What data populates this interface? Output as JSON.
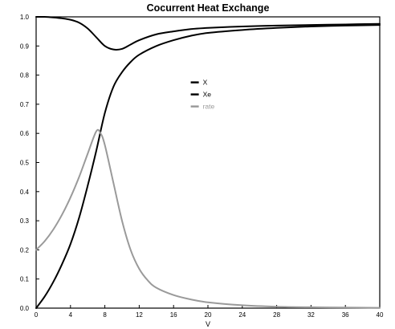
{
  "chart_data": {
    "type": "line",
    "title": "Cocurrent Heat Exchange",
    "xlabel": "V",
    "ylabel": "",
    "xlim": [
      0,
      40
    ],
    "ylim": [
      0,
      1.0
    ],
    "xticks": [
      0,
      4,
      8,
      12,
      16,
      20,
      24,
      28,
      32,
      36,
      40
    ],
    "yticks": [
      0.0,
      0.1,
      0.2,
      0.3,
      0.4,
      0.5,
      0.6,
      0.7,
      0.8,
      0.9,
      1.0
    ],
    "xtick_labels": [
      "0",
      "4",
      "8",
      "12",
      "16",
      "20",
      "24",
      "28",
      "32",
      "36",
      "40"
    ],
    "ytick_labels": [
      "0.0",
      "0.1",
      "0.2",
      "0.3",
      "0.4",
      "0.5",
      "0.6",
      "0.7",
      "0.8",
      "0.9",
      "1.0"
    ],
    "grid": false,
    "legend_position": "center",
    "series": [
      {
        "name": "X",
        "color": "#000000",
        "x": [
          0,
          1,
          2,
          3,
          4,
          5,
          6,
          7,
          8,
          9,
          10,
          11,
          12,
          14,
          16,
          18,
          20,
          24,
          28,
          32,
          36,
          40
        ],
        "values": [
          0.0,
          0.04,
          0.09,
          0.15,
          0.22,
          0.31,
          0.42,
          0.54,
          0.67,
          0.76,
          0.81,
          0.845,
          0.87,
          0.9,
          0.92,
          0.935,
          0.945,
          0.955,
          0.962,
          0.967,
          0.97,
          0.972
        ]
      },
      {
        "name": "Xe",
        "color": "#000000",
        "x": [
          0,
          1,
          2,
          3,
          4,
          5,
          6,
          7,
          8,
          9,
          10,
          11,
          12,
          14,
          16,
          18,
          20,
          24,
          28,
          32,
          36,
          40
        ],
        "values": [
          1.0,
          1.0,
          0.998,
          0.995,
          0.99,
          0.98,
          0.96,
          0.93,
          0.9,
          0.888,
          0.89,
          0.905,
          0.92,
          0.94,
          0.95,
          0.958,
          0.962,
          0.967,
          0.97,
          0.972,
          0.974,
          0.976
        ]
      },
      {
        "name": "rate",
        "color": "#9a9a9a",
        "x": [
          0,
          1,
          2,
          3,
          4,
          5,
          6,
          7,
          7.5,
          8,
          9,
          10,
          11,
          12,
          13,
          14,
          16,
          18,
          20,
          24,
          28,
          32,
          36,
          40
        ],
        "values": [
          0.2,
          0.23,
          0.27,
          0.32,
          0.38,
          0.45,
          0.53,
          0.607,
          0.6,
          0.56,
          0.43,
          0.3,
          0.2,
          0.135,
          0.095,
          0.07,
          0.045,
          0.03,
          0.02,
          0.01,
          0.005,
          0.003,
          0.002,
          0.001
        ]
      }
    ]
  }
}
